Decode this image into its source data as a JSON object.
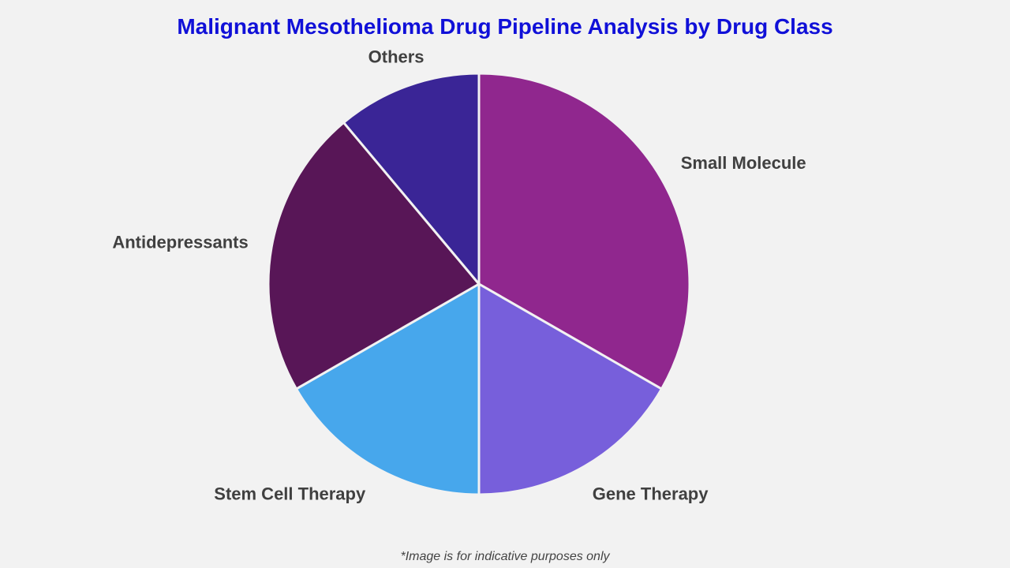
{
  "chart_data": {
    "type": "pie",
    "title": "Malignant Mesothelioma Drug Pipeline Analysis by Drug Class",
    "start_angle": "12 o'clock, clockwise",
    "slices": [
      {
        "label": "Small Molecule",
        "value": 33.3,
        "color": "#90278e"
      },
      {
        "label": "Gene Therapy",
        "value": 16.7,
        "color": "#775fdb"
      },
      {
        "label": "Stem Cell Therapy",
        "value": 16.7,
        "color": "#47a7ec"
      },
      {
        "label": "Antidepressants",
        "value": 22.2,
        "color": "#581657"
      },
      {
        "label": "Others",
        "value": 11.1,
        "color": "#3a2596"
      }
    ]
  },
  "footer": "*Image is for indicative purposes only"
}
